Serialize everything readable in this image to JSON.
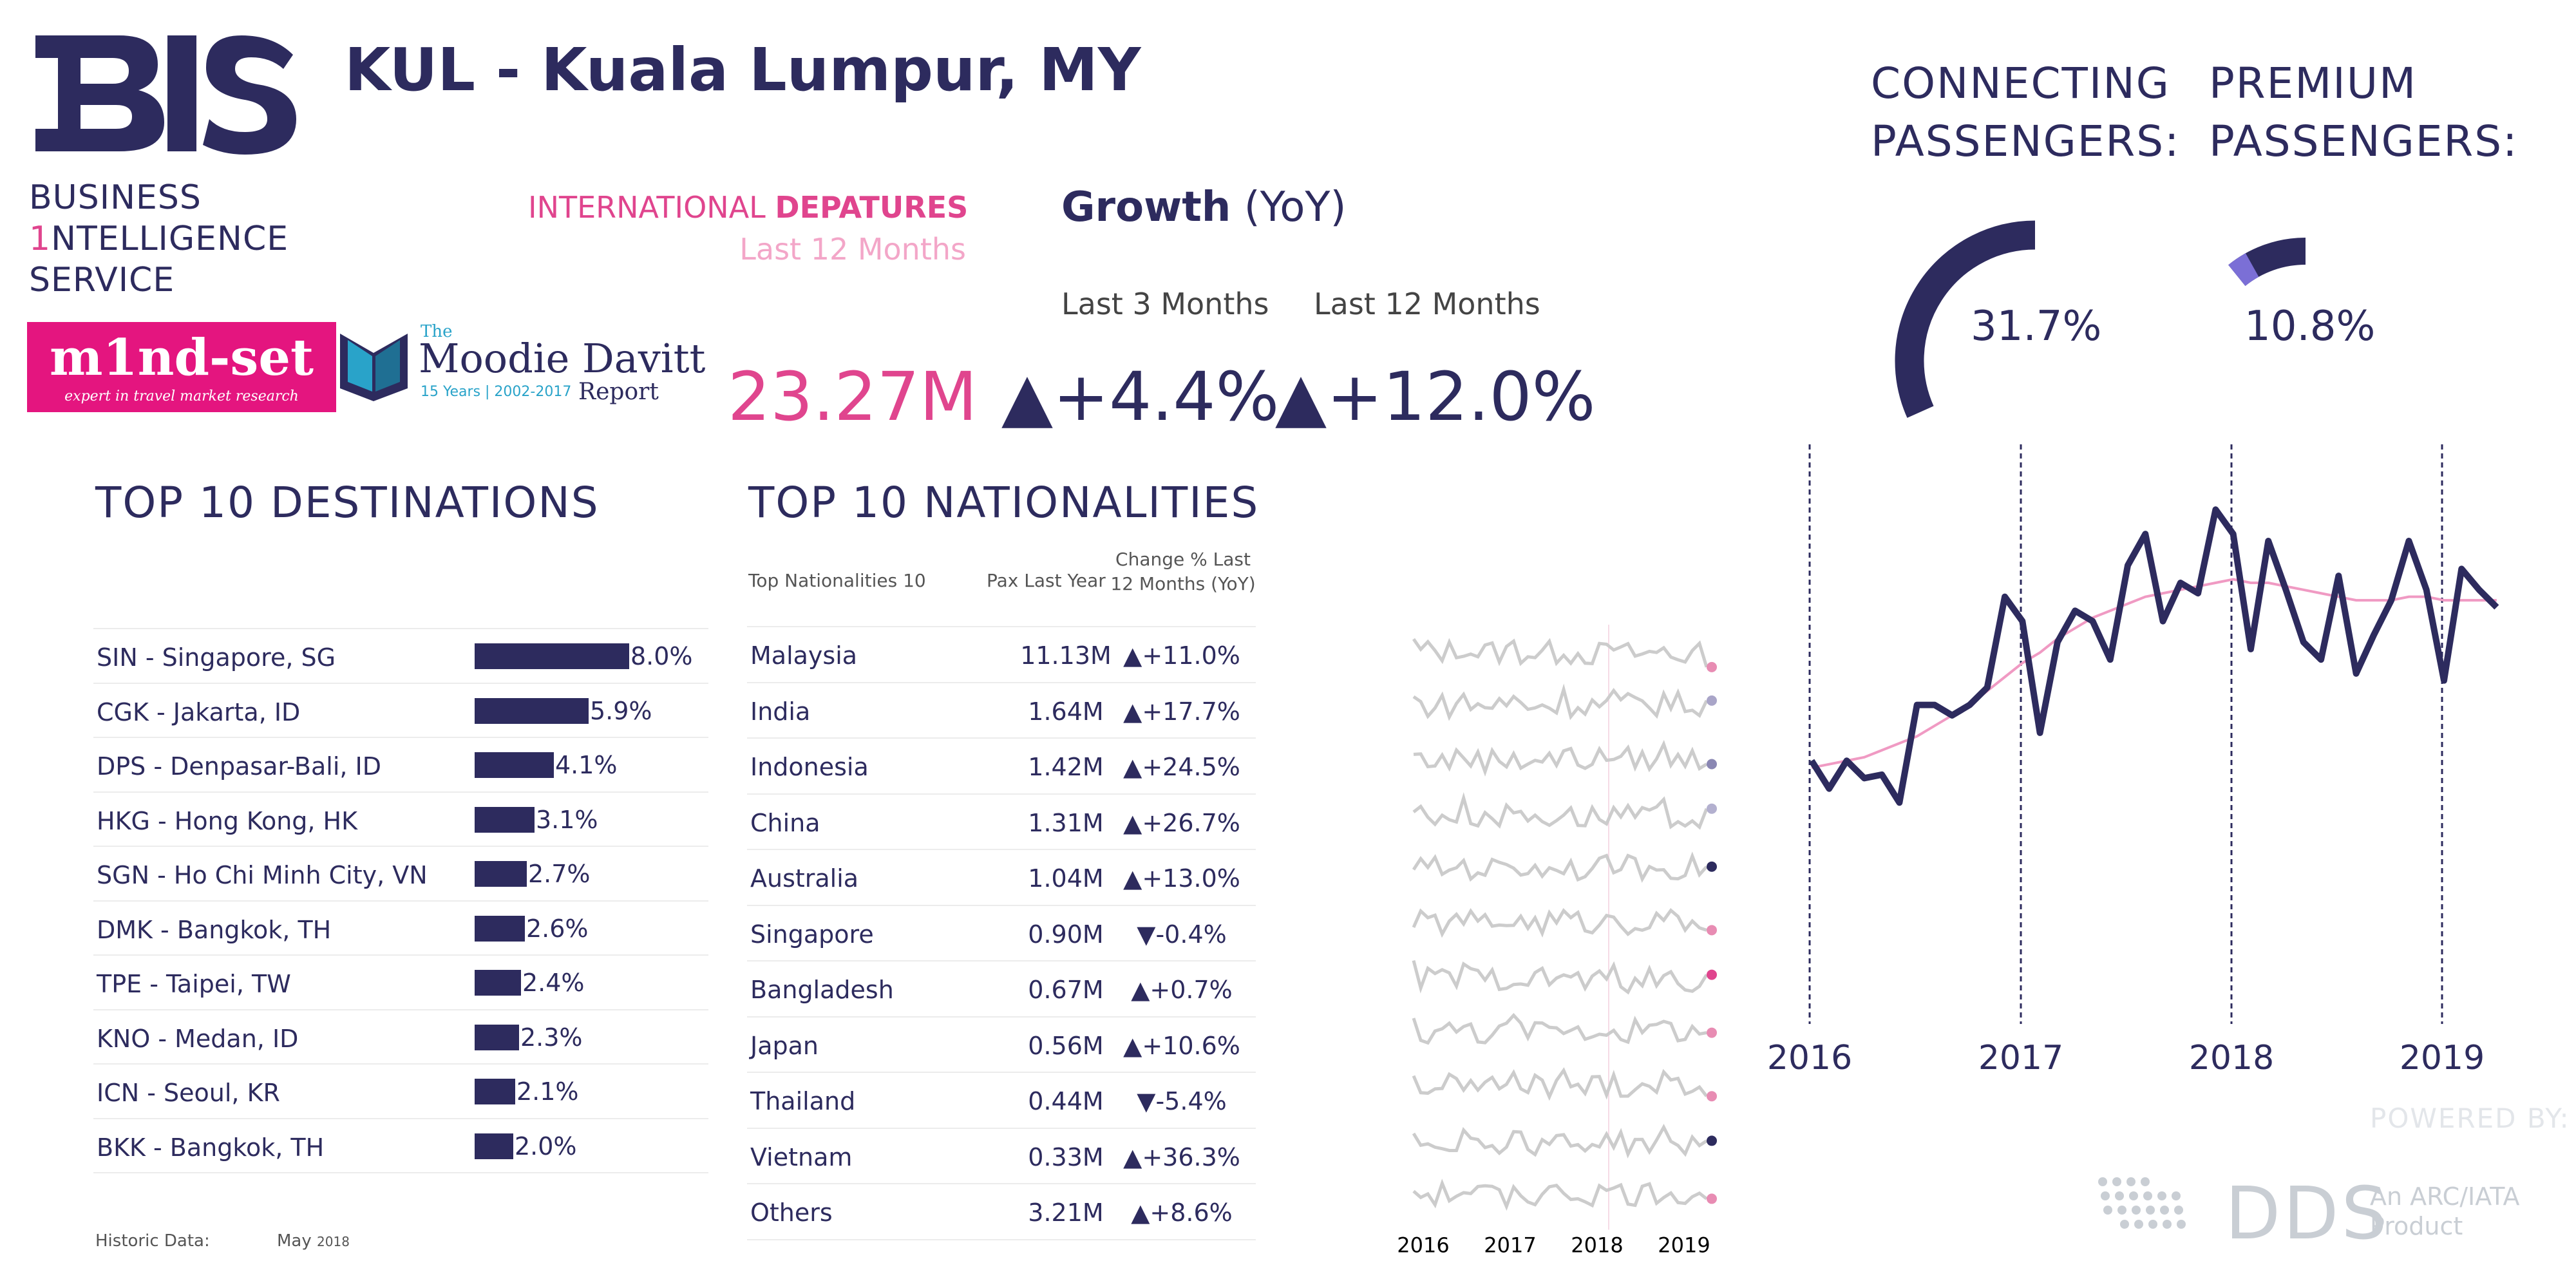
{
  "header": {
    "title": "KUL - Kuala Lumpur, MY",
    "bis_line1": "BUSINESS",
    "bis_one": "1",
    "bis_line2": "NTELLIGENCE",
    "bis_line3": "SERVICE",
    "mindset_name": "m1nd-set",
    "mindset_tagline": "expert in travel market research",
    "moodie_the": "The",
    "moodie_name": "Moodie Davitt",
    "moodie_years": "15 Years | 2002-2017",
    "moodie_report": "Report"
  },
  "kpis": {
    "departures_label_a": "INTERNATIONAL",
    "departures_label_b": "DEPATURES",
    "departures_period": "Last 12 Months",
    "growth_title": "Growth",
    "growth_suffix": "(YoY)",
    "last3_label": "Last 3 Months",
    "last12_label": "Last 12 Months",
    "pax_value": "23.27M",
    "growth_3m": "▲+4.4%",
    "growth_12m": "▲+12.0%",
    "connecting_label_1": "CONNECTING",
    "connecting_label_2": "PASSENGERS:",
    "connecting_pct": "31.7%",
    "connecting_value": 31.7,
    "premium_label_1": "PREMIUM",
    "premium_label_2": "PASSENGERS:",
    "premium_pct": "10.8%",
    "premium_value": 10.8
  },
  "destinations": {
    "title": "TOP 10 DESTINATIONS",
    "rows": [
      {
        "name": "SIN - Singapore, SG",
        "share": 8.0,
        "label": "8.0%"
      },
      {
        "name": "CGK - Jakarta, ID",
        "share": 5.9,
        "label": "5.9%"
      },
      {
        "name": "DPS - Denpasar-Bali, ID",
        "share": 4.1,
        "label": "4.1%"
      },
      {
        "name": "HKG - Hong Kong, HK",
        "share": 3.1,
        "label": "3.1%"
      },
      {
        "name": "SGN - Ho Chi Minh City, VN",
        "share": 2.7,
        "label": "2.7%"
      },
      {
        "name": "DMK - Bangkok, TH",
        "share": 2.6,
        "label": "2.6%"
      },
      {
        "name": "TPE - Taipei, TW",
        "share": 2.4,
        "label": "2.4%"
      },
      {
        "name": "KNO - Medan, ID",
        "share": 2.3,
        "label": "2.3%"
      },
      {
        "name": "ICN - Seoul, KR",
        "share": 2.1,
        "label": "2.1%"
      },
      {
        "name": "BKK - Bangkok, TH",
        "share": 2.0,
        "label": "2.0%"
      }
    ]
  },
  "nationalities": {
    "title": "TOP 10 NATIONALITIES",
    "col_name": "Top Nationalities 10",
    "col_pax": "Pax Last Year",
    "col_change": "Change % Last 12 Months (YoY)",
    "rows": [
      {
        "name": "Malaysia",
        "pax": "11.13M",
        "change": "▲+11.0%"
      },
      {
        "name": "India",
        "pax": "1.64M",
        "change": "▲+17.7%"
      },
      {
        "name": "Indonesia",
        "pax": "1.42M",
        "change": "▲+24.5%"
      },
      {
        "name": "China",
        "pax": "1.31M",
        "change": "▲+26.7%"
      },
      {
        "name": "Australia",
        "pax": "1.04M",
        "change": "▲+13.0%"
      },
      {
        "name": "Singapore",
        "pax": "0.90M",
        "change": "▼-0.4%"
      },
      {
        "name": "Bangladesh",
        "pax": "0.67M",
        "change": "▲+0.7%"
      },
      {
        "name": "Japan",
        "pax": "0.56M",
        "change": "▲+10.6%"
      },
      {
        "name": "Thailand",
        "pax": "0.44M",
        "change": "▼-5.4%"
      },
      {
        "name": "Vietnam",
        "pax": "0.33M",
        "change": "▲+36.3%"
      },
      {
        "name": "Others",
        "pax": "3.21M",
        "change": "▲+8.6%"
      }
    ],
    "spark_years": [
      "2016",
      "2017",
      "2018",
      "2019"
    ],
    "spark_dot_colors": [
      "#e88cb3",
      "#a9a5c8",
      "#8a87b3",
      "#b3b0cf",
      "#2d2b5e",
      "#e88cb3",
      "#e0458e",
      "#e88cb3",
      "#e88cb3",
      "#2d2b5e",
      "#e88cb3"
    ]
  },
  "footer": {
    "historic_label": "Historic Data:",
    "historic_month": "May",
    "historic_year": "2018",
    "powered_by": "POWERED BY:",
    "dds": "DDS",
    "dds_sub_1": "An ARC/IATA",
    "dds_sub_2": "Product"
  },
  "colors": {
    "navy": "#2d2b5e",
    "pink": "#e0458e",
    "light_pink": "#f3a6c8",
    "grey": "#cccccc"
  },
  "chart_data": [
    {
      "type": "bar",
      "title": "TOP 10 DESTINATIONS",
      "categories": [
        "SIN - Singapore, SG",
        "CGK - Jakarta, ID",
        "DPS - Denpasar-Bali, ID",
        "HKG - Hong Kong, HK",
        "SGN - Ho Chi Minh City, VN",
        "DMK - Bangkok, TH",
        "TPE - Taipei, TW",
        "KNO - Medan, ID",
        "ICN - Seoul, KR",
        "BKK - Bangkok, TH"
      ],
      "values": [
        8.0,
        5.9,
        4.1,
        3.1,
        2.7,
        2.6,
        2.4,
        2.3,
        2.1,
        2.0
      ]
    },
    {
      "type": "line",
      "title": "",
      "x_tick_labels": [
        "2016",
        "2017",
        "2018",
        "2019"
      ],
      "x_start": 2016.0,
      "x_step_months": 1,
      "series": [
        {
          "values": [
            3.3,
            2.5,
            3.3,
            2.8,
            2.9,
            2.1,
            4.9,
            4.9,
            4.6,
            4.9,
            5.4,
            8.0,
            7.3,
            4.1,
            6.7,
            7.6,
            7.3,
            6.2,
            8.9,
            9.8,
            7.3,
            8.4,
            8.1,
            10.5,
            9.8,
            6.5,
            9.6,
            8.2,
            6.7,
            6.2,
            8.6,
            5.8,
            6.9,
            7.9,
            9.6,
            8.2,
            5.6,
            8.8,
            8.2,
            7.7
          ]
        },
        {
          "values": [
            3.1,
            3.2,
            3.3,
            3.4,
            3.6,
            3.8,
            4.0,
            4.3,
            4.6,
            4.9,
            5.3,
            5.7,
            6.1,
            6.4,
            6.8,
            7.1,
            7.4,
            7.6,
            7.8,
            8.0,
            8.1,
            8.2,
            8.3,
            8.4,
            8.5,
            8.4,
            8.4,
            8.3,
            8.2,
            8.1,
            8.0,
            7.9,
            7.9,
            7.9,
            8.0,
            8.0,
            7.9,
            7.9,
            7.9,
            7.9
          ]
        }
      ]
    }
  ]
}
